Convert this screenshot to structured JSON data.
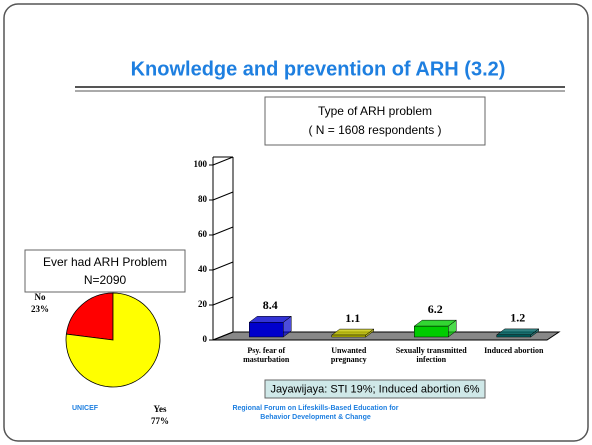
{
  "slide_title": "Knowledge and prevention of ARH  (3.2)",
  "source": "UNICEF",
  "footer": "Regional Forum on Lifeskills-Based Education for Behavior Development & Change",
  "note": "Jayawijaya: STI 19%; Induced abortion 6%",
  "chart_data": [
    {
      "type": "bar",
      "title": "Type of ARH problem",
      "subtitle": "( N = 1608 respondents )",
      "categories": [
        "Psy. fear of masturbation",
        "Unwanted pregnancy",
        "Sexually transmitted infection",
        "Induced abortion"
      ],
      "values": [
        8.4,
        1.1,
        6.2,
        1.2
      ],
      "colors": [
        "#0000cc",
        "#c8c800",
        "#00cc00",
        "#006666"
      ],
      "ylim": [
        0,
        100
      ],
      "yticks": [
        0,
        20,
        40,
        60,
        80,
        100
      ]
    },
    {
      "type": "pie",
      "title": "Ever had ARH Problem",
      "subtitle": "N=2090",
      "categories": [
        "No",
        "Yes"
      ],
      "values": [
        23,
        77
      ],
      "value_labels": [
        "23%",
        "77%"
      ],
      "colors": [
        "#ff0000",
        "#ffff00"
      ]
    }
  ]
}
